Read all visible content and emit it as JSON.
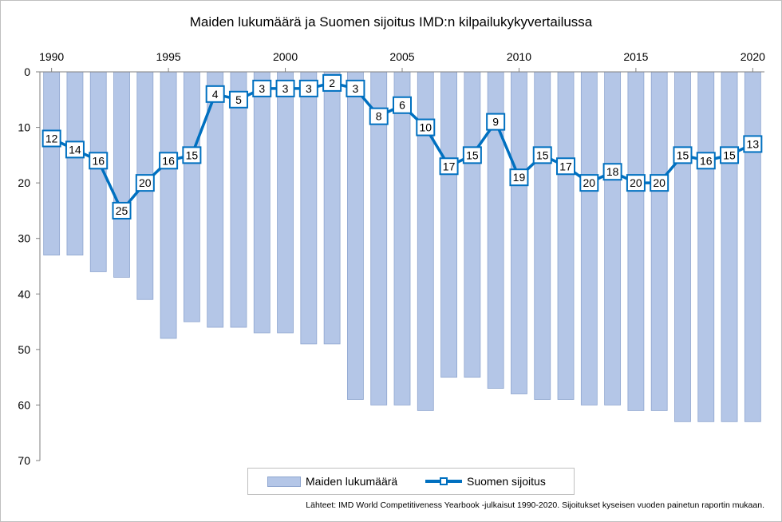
{
  "chart_data": {
    "type": "bar",
    "title": "Maiden lukumäärä ja Suomen sijoitus IMD:n kilpailukykyvertailussa",
    "x": [
      1990,
      1991,
      1992,
      1993,
      1994,
      1995,
      1996,
      1997,
      1998,
      1999,
      2000,
      2001,
      2002,
      2003,
      2004,
      2005,
      2006,
      2007,
      2008,
      2009,
      2010,
      2011,
      2012,
      2013,
      2014,
      2015,
      2016,
      2017,
      2018,
      2019,
      2020
    ],
    "x_tick_labels": [
      "1990",
      "1995",
      "2000",
      "2005",
      "2010",
      "2015",
      "2020"
    ],
    "x_axis_position": "top",
    "y_axis_reversed": true,
    "ylim": [
      0,
      70
    ],
    "y_ticks": [
      0,
      10,
      20,
      30,
      40,
      50,
      60,
      70
    ],
    "grid": false,
    "series": [
      {
        "name": "Maiden lukumäärä",
        "type": "bar",
        "color": "#b4c6e7",
        "values": [
          33,
          33,
          36,
          37,
          41,
          48,
          45,
          46,
          46,
          47,
          47,
          49,
          49,
          59,
          60,
          60,
          61,
          55,
          55,
          57,
          58,
          59,
          59,
          60,
          60,
          61,
          61,
          63,
          63,
          63,
          63
        ]
      },
      {
        "name": "Suomen sijoitus",
        "type": "line",
        "color": "#0070c0",
        "markers": "square",
        "values": [
          12,
          14,
          16,
          25,
          20,
          16,
          15,
          4,
          5,
          3,
          3,
          3,
          2,
          3,
          8,
          6,
          10,
          17,
          15,
          9,
          19,
          15,
          17,
          20,
          18,
          20,
          20,
          15,
          16,
          15,
          13
        ]
      }
    ],
    "legend_placement": "bottom",
    "source_note": "Lähteet: IMD World Competitiveness Yearbook -julkaisut 1990-2020. Sijoitukset kyseisen vuoden painetun raportin mukaan."
  }
}
